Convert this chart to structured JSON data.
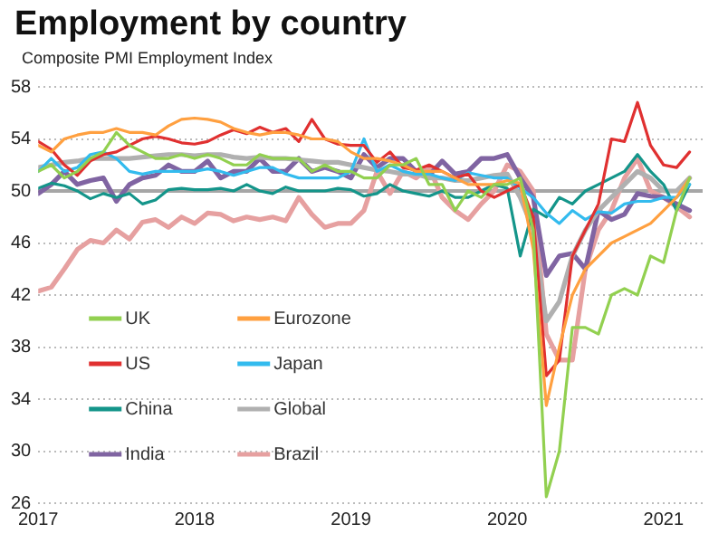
{
  "chart_data": {
    "type": "line",
    "title": "Employment by country",
    "ylabel": "Composite PMI Employment Index",
    "x": [
      "2017-01",
      "2017-02",
      "2017-03",
      "2017-04",
      "2017-05",
      "2017-06",
      "2017-07",
      "2017-08",
      "2017-09",
      "2017-10",
      "2017-11",
      "2017-12",
      "2018-01",
      "2018-02",
      "2018-03",
      "2018-04",
      "2018-05",
      "2018-06",
      "2018-07",
      "2018-08",
      "2018-09",
      "2018-10",
      "2018-11",
      "2018-12",
      "2019-01",
      "2019-02",
      "2019-03",
      "2019-04",
      "2019-05",
      "2019-06",
      "2019-07",
      "2019-08",
      "2019-09",
      "2019-10",
      "2019-11",
      "2019-12",
      "2020-01",
      "2020-02",
      "2020-03",
      "2020-04",
      "2020-05",
      "2020-06",
      "2020-07",
      "2020-08",
      "2020-09",
      "2020-10",
      "2020-11",
      "2020-12",
      "2021-01",
      "2021-02",
      "2021-03"
    ],
    "xlim": [
      "2017-01",
      "2021-04"
    ],
    "xticks": [
      "2017",
      "2018",
      "2019",
      "2020",
      "2021"
    ],
    "ylim": [
      26,
      58
    ],
    "yticks": [
      26,
      30,
      34,
      38,
      42,
      46,
      50,
      54,
      58
    ],
    "grid": "y",
    "legend": "bottom left",
    "line_style": "solid",
    "marker": "none",
    "ref_lines": [
      {
        "axis": "y",
        "value": 50,
        "color": "#a6a6a6"
      }
    ],
    "series": [
      {
        "name": "UK",
        "color": "#92d050",
        "values": [
          51.5,
          52,
          51,
          51.5,
          52.5,
          53,
          54.5,
          53.5,
          53,
          52.5,
          52.5,
          52.8,
          52.5,
          52.8,
          52.5,
          52,
          52,
          52.8,
          52.5,
          52.5,
          52.5,
          51.5,
          52,
          51.5,
          51.5,
          51,
          51,
          52,
          52,
          52.5,
          50.5,
          50.5,
          48.5,
          50,
          49.5,
          50.5,
          50.5,
          51,
          47,
          26.5,
          30,
          39.5,
          39.5,
          39,
          42,
          42.5,
          42,
          45,
          44.5,
          48.5,
          51
        ]
      },
      {
        "name": "Eurozone",
        "color": "#ffa040",
        "values": [
          53.5,
          53,
          54,
          54.3,
          54.5,
          54.5,
          54.8,
          54.5,
          54.5,
          54.3,
          55,
          55.5,
          55.6,
          55.5,
          55.3,
          54.8,
          54.5,
          54.3,
          54.5,
          54.5,
          54.3,
          54,
          54,
          53.8,
          53,
          52.5,
          52.5,
          52.3,
          52,
          51.5,
          51.5,
          51.5,
          51,
          50.5,
          50.5,
          50.5,
          50.8,
          50.6,
          45.5,
          33.5,
          38,
          42,
          44,
          45,
          46,
          46.5,
          47,
          47.5,
          48.5,
          49.5,
          51
        ]
      },
      {
        "name": "US",
        "color": "#e03030",
        "values": [
          53.8,
          53.2,
          52,
          51.2,
          52.3,
          52.8,
          53,
          53.5,
          54,
          54.2,
          54,
          53.7,
          53.6,
          53.8,
          54.3,
          54.7,
          54.4,
          54.9,
          54.5,
          54.8,
          53.8,
          55.5,
          54,
          53.6,
          53.5,
          53.5,
          52.2,
          53,
          51.8,
          51.6,
          52,
          51.5,
          51,
          51.3,
          50,
          49.5,
          50,
          50.5,
          48,
          35.8,
          37,
          45,
          47,
          49,
          54,
          53.8,
          56.8,
          53.5,
          52,
          51.8,
          53
        ]
      },
      {
        "name": "Japan",
        "color": "#33bbee",
        "values": [
          51.5,
          52.5,
          51.5,
          51.8,
          52.8,
          53,
          52.5,
          51.5,
          51.3,
          51.5,
          51.5,
          51.5,
          51.5,
          51.7,
          51.5,
          51.2,
          51.5,
          51.8,
          51.8,
          51.3,
          51,
          51,
          51,
          51,
          51.5,
          54,
          51.5,
          52,
          51.5,
          51.3,
          51.3,
          51,
          50.8,
          51.4,
          51.2,
          51,
          51,
          50.2,
          49.5,
          48.3,
          47.5,
          48.5,
          47.8,
          48.4,
          48.3,
          49,
          49.2,
          49.2,
          49.5,
          49.5,
          50.5
        ]
      },
      {
        "name": "China",
        "color": "#14958a",
        "values": [
          50.2,
          50.6,
          50.4,
          50,
          49.4,
          49.8,
          49.5,
          49.8,
          49,
          49.3,
          50.1,
          50.2,
          50.1,
          50.1,
          50.2,
          50,
          50.5,
          50,
          49.8,
          50.3,
          50,
          50,
          50,
          50.2,
          50.1,
          49.6,
          49.8,
          50.5,
          50,
          49.8,
          49.6,
          50,
          49.5,
          49.5,
          50,
          50.5,
          50.2,
          45,
          48.6,
          48,
          49.5,
          49,
          50,
          50.5,
          51,
          51.5,
          52.8,
          51.5,
          50.5,
          48.5,
          50.5
        ]
      },
      {
        "name": "Global",
        "color": "#b0b0b0",
        "values": [
          51.8,
          52,
          52.2,
          52.3,
          52.5,
          52.5,
          52.5,
          52.5,
          52.6,
          52.7,
          52.8,
          52.8,
          52.7,
          52.8,
          52.8,
          52.6,
          52.5,
          52.6,
          52.5,
          52.5,
          52.4,
          52.3,
          52.2,
          52.2,
          52,
          51.8,
          51.6,
          51.5,
          51.3,
          51.3,
          51,
          51,
          50.8,
          50.8,
          51,
          51.2,
          51.3,
          49.5,
          47,
          40,
          41.5,
          45,
          47,
          48.5,
          49.5,
          50.5,
          51.5,
          51,
          50,
          50,
          51
        ]
      },
      {
        "name": "India",
        "color": "#8064a2",
        "values": [
          49.8,
          50.5,
          51.5,
          50.5,
          50.8,
          51,
          49.2,
          50.5,
          51,
          51.2,
          52,
          51.5,
          51.5,
          52.3,
          51,
          51.5,
          51.5,
          52.5,
          51.5,
          51.5,
          52.5,
          51.5,
          51.8,
          51.5,
          51,
          52.8,
          51.8,
          52.5,
          52.5,
          51.5,
          51.2,
          52.3,
          51.3,
          51.5,
          52.5,
          52.5,
          52.8,
          51,
          49.5,
          43.5,
          45,
          45.2,
          44,
          48.5,
          47.8,
          48.2,
          49.8,
          49.6,
          49.5,
          49,
          48.5
        ]
      },
      {
        "name": "Brazil",
        "color": "#e6a0a0",
        "values": [
          42.3,
          42.6,
          44,
          45.5,
          46.2,
          46,
          47,
          46.3,
          47.6,
          47.8,
          47.2,
          48,
          47.5,
          48.3,
          48.2,
          47.7,
          48,
          47.8,
          48,
          47.7,
          49.5,
          48.2,
          47.2,
          47.5,
          47.5,
          48.5,
          51.5,
          49.8,
          51.5,
          51,
          51.8,
          49.5,
          48.5,
          47.8,
          49,
          50,
          52,
          51.5,
          50,
          39,
          37,
          37,
          44,
          47,
          48.5,
          51,
          52.5,
          50,
          49.5,
          48.8,
          48
        ]
      }
    ]
  }
}
